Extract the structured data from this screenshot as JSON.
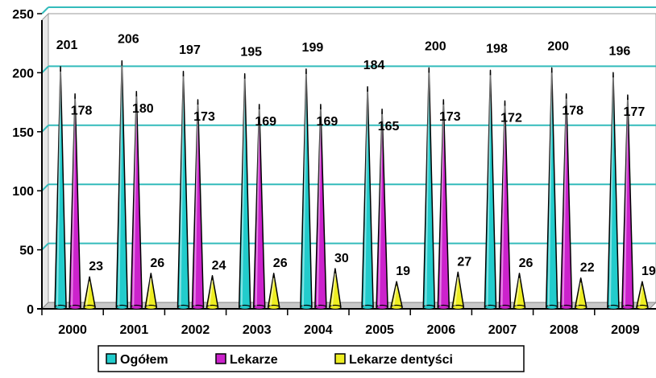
{
  "chart_data": {
    "type": "bar",
    "subtype": "cone-3d",
    "categories": [
      "2000",
      "2001",
      "2002",
      "2003",
      "2004",
      "2005",
      "2006",
      "2007",
      "2008",
      "2009"
    ],
    "series": [
      {
        "name": "Ogółem",
        "color": "#22cccc",
        "values": [
          201,
          206,
          197,
          195,
          199,
          184,
          200,
          198,
          200,
          196
        ]
      },
      {
        "name": "Lekarze",
        "color": "#cc22cc",
        "values": [
          178,
          180,
          173,
          169,
          169,
          165,
          173,
          172,
          178,
          177
        ]
      },
      {
        "name": "Lekarze dentyści",
        "color": "#eeee22",
        "values": [
          23,
          26,
          24,
          26,
          30,
          19,
          27,
          26,
          22,
          19
        ]
      }
    ],
    "y_ticks": [
      "0",
      "50",
      "100",
      "150",
      "200",
      "250"
    ],
    "ylim": [
      0,
      250
    ],
    "title": "",
    "xlabel": "",
    "ylabel": "",
    "grid": true,
    "gridline_color": "#33bbbb",
    "legend_position": "bottom-center",
    "data_labels": {
      "Ogółem": [
        "201",
        "206",
        "197",
        "195",
        "199",
        "184",
        "200",
        "198",
        "200",
        "196"
      ],
      "Lekarze": [
        "178",
        "180",
        "173",
        "169",
        "169",
        "165",
        "173",
        "172",
        "178",
        "177"
      ],
      "Lekarze dentyści": [
        "23",
        "26",
        "24",
        "26",
        "30",
        "19",
        "27",
        "26",
        "22",
        "19"
      ]
    }
  }
}
